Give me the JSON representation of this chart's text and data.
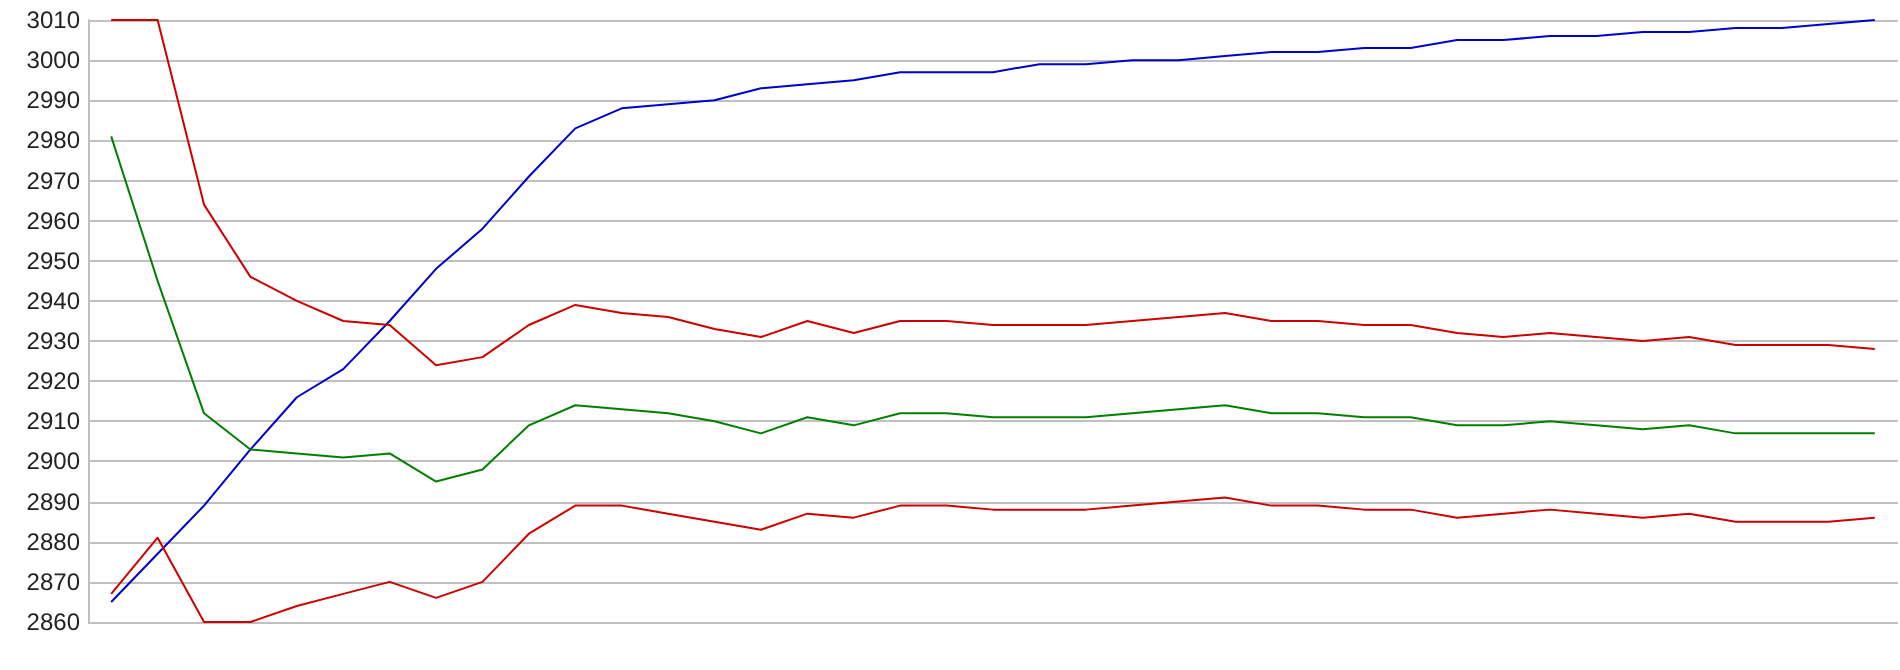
{
  "chart_data": {
    "type": "line",
    "categories": [
      null,
      null,
      null,
      null,
      null,
      null,
      null,
      null,
      null,
      null,
      null,
      null,
      null,
      null,
      null,
      null,
      null,
      null,
      null,
      null,
      null,
      null,
      null,
      null,
      null,
      null,
      null,
      null,
      null,
      null,
      null,
      null,
      null,
      null,
      null,
      null,
      null,
      null,
      null
    ],
    "series": [
      {
        "color": "#0000cc",
        "values": [
          2865,
          2877,
          2889,
          2903,
          2916,
          2923,
          2935,
          2948,
          2958,
          2971,
          2983,
          2988,
          2989,
          2990,
          2993,
          2994,
          2995,
          2997,
          2997,
          2997,
          2999,
          2999,
          3000,
          3000,
          3001,
          3002,
          3002,
          3003,
          3003,
          3005,
          3005,
          3006,
          3006,
          3007,
          3007,
          3008,
          3008,
          3009,
          3010
        ]
      },
      {
        "color": "#cc0000",
        "values": [
          3010,
          3010,
          2964,
          2946,
          2940,
          2935,
          2934,
          2924,
          2926,
          2934,
          2939,
          2937,
          2936,
          2933,
          2931,
          2935,
          2932,
          2935,
          2935,
          2934,
          2934,
          2934,
          2935,
          2936,
          2937,
          2935,
          2935,
          2934,
          2934,
          2932,
          2931,
          2932,
          2931,
          2930,
          2931,
          2929,
          2929,
          2929,
          2928
        ]
      },
      {
        "color": "#008000",
        "values": [
          2981,
          2945,
          2912,
          2903,
          2902,
          2901,
          2902,
          2895,
          2898,
          2909,
          2914,
          2913,
          2912,
          2910,
          2907,
          2911,
          2909,
          2912,
          2912,
          2911,
          2911,
          2911,
          2912,
          2913,
          2914,
          2912,
          2912,
          2911,
          2911,
          2909,
          2909,
          2910,
          2909,
          2908,
          2909,
          2907,
          2907,
          2907,
          2907
        ]
      },
      {
        "color": "#cc0000",
        "values": [
          2867,
          2881,
          2860,
          2860,
          2864,
          2867,
          2870,
          2866,
          2870,
          2882,
          2889,
          2889,
          2887,
          2885,
          2883,
          2887,
          2886,
          2889,
          2889,
          2888,
          2888,
          2888,
          2889,
          2890,
          2891,
          2889,
          2889,
          2888,
          2888,
          2886,
          2887,
          2888,
          2887,
          2886,
          2887,
          2885,
          2885,
          2885,
          2886
        ]
      }
    ],
    "ylim": [
      2860,
      3010
    ],
    "yticks": [
      2860,
      2870,
      2880,
      2890,
      2900,
      2910,
      2920,
      2930,
      2940,
      2950,
      2960,
      2970,
      2980,
      2990,
      3000,
      3010
    ],
    "grid": "y",
    "marker": "none",
    "line_style": "solid"
  }
}
